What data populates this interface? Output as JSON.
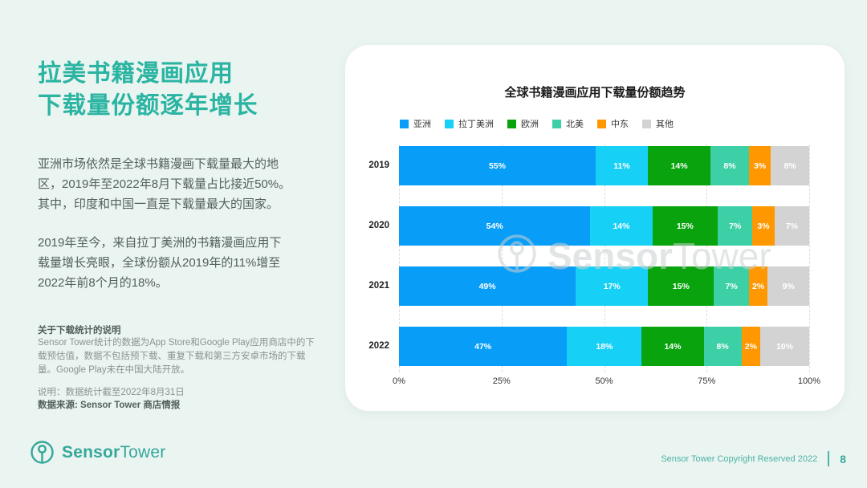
{
  "page": {
    "bg_color": "#eaf4f0",
    "accent_color": "#2bb4a2"
  },
  "left_panel": {
    "title_line1": "拉美书籍漫画应用",
    "title_line2": "下载量份额逐年增长",
    "paragraph1": "亚洲市场依然是全球书籍漫画下载量最大的地区，2019年至2022年8月下载量占比接近50%。其中，印度和中国一直是下载量最大的国家。",
    "paragraph2": "2019年至今，来自拉丁美洲的书籍漫画应用下载量增长亮眼，全球份额从2019年的11%增至2022年前8个月的18%。",
    "notes_heading": "关于下载统计的说明",
    "notes_body": "Sensor Tower统计的数据为App Store和Google Play应用商店中的下载预估值，数据不包括预下载、重复下载和第三方安卓市场的下载量。Google Play未在中国大陆开放。",
    "note_line1": "说明：数据统计截至2022年8月31日",
    "note_line2": "数据来源: Sensor Tower 商店情报"
  },
  "logo": {
    "brand_bold": "Sensor",
    "brand_light": "Tower"
  },
  "footer": {
    "copyright": "Sensor Tower Copyright Reserved 2022",
    "page_number": "8"
  },
  "chart_data": {
    "type": "bar",
    "orientation": "horizontal",
    "stacked": true,
    "title": "全球书籍漫画应用下载量份额趋势",
    "categories": [
      "2019",
      "2020",
      "2021",
      "2022"
    ],
    "series": [
      {
        "name": "亚洲",
        "color": "#089EF7",
        "values": [
          55,
          54,
          49,
          47
        ]
      },
      {
        "name": "拉丁美洲",
        "color": "#17D0F5",
        "values": [
          11,
          14,
          17,
          18
        ]
      },
      {
        "name": "欧洲",
        "color": "#08A30D",
        "values": [
          14,
          15,
          15,
          14
        ]
      },
      {
        "name": "北美",
        "color": "#3DCFA5",
        "values": [
          8,
          7,
          7,
          8
        ]
      },
      {
        "name": "中东",
        "color": "#FF9800",
        "values": [
          3,
          3,
          2,
          2
        ]
      },
      {
        "name": "其他",
        "color": "#D3D3D3",
        "values": [
          8,
          7,
          9,
          10
        ]
      }
    ],
    "value_suffix": "%",
    "x_ticks": [
      "0%",
      "25%",
      "50%",
      "75%",
      "100%"
    ],
    "xlim": [
      0,
      100
    ],
    "grid": "dashed-vertical",
    "legend_position": "top-left",
    "watermark": {
      "bold": "Sensor",
      "light": "Tower"
    }
  }
}
